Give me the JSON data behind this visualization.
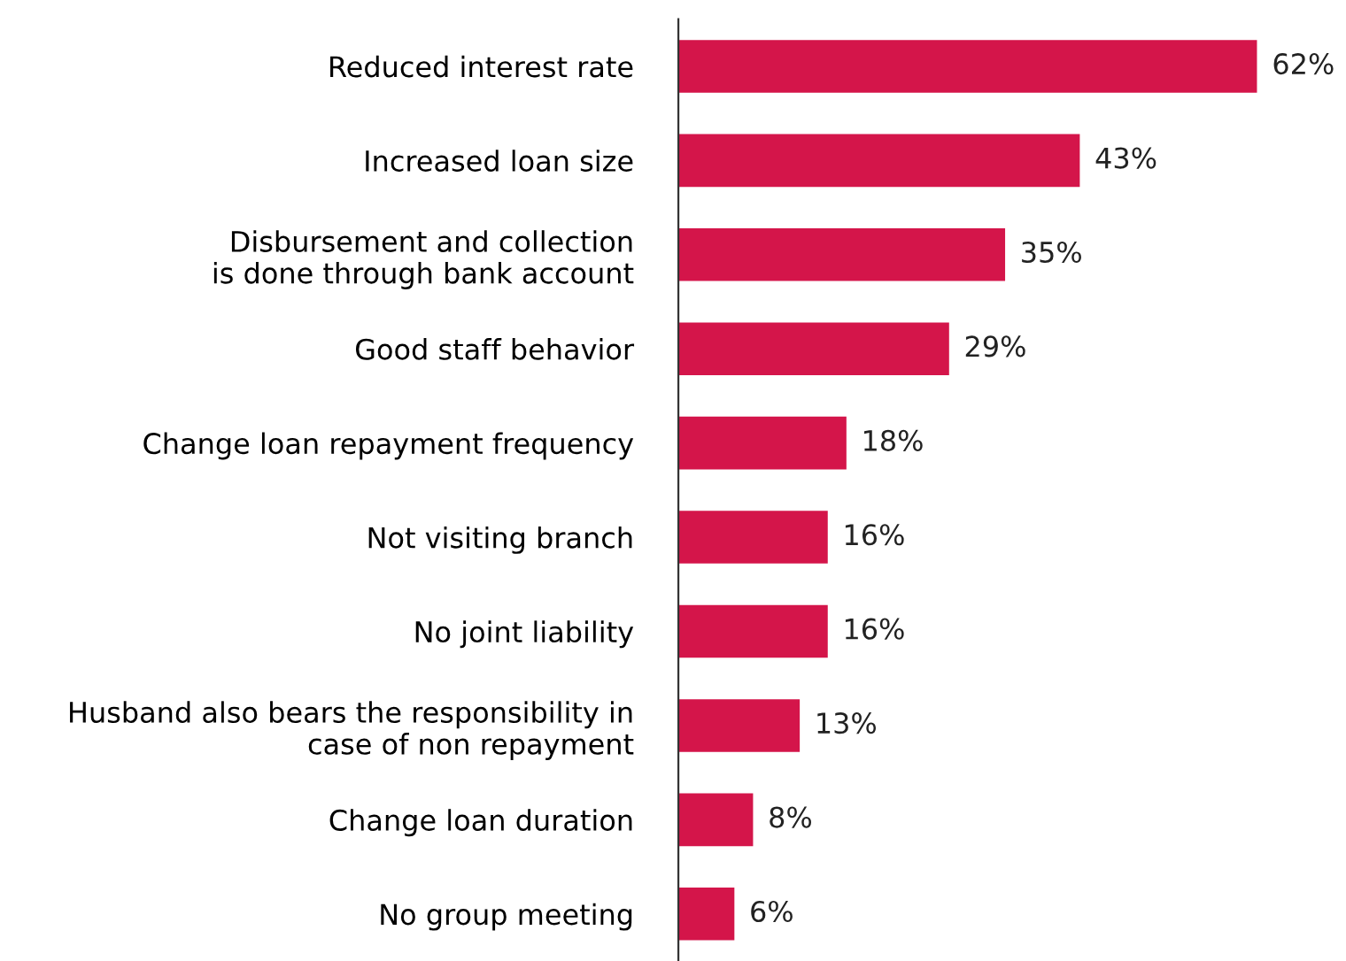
{
  "chart_data": {
    "type": "bar",
    "orientation": "horizontal",
    "categories": [
      "Reduced interest rate",
      "Increased loan size",
      "Disbursement and collection\nis done through bank account",
      "Good staff behavior",
      "Change loan repayment frequency",
      "Not visiting branch",
      "No joint liability",
      "Husband also bears the responsibility in\ncase of non repayment",
      "Change loan duration",
      "No group meeting"
    ],
    "values": [
      62,
      43,
      35,
      29,
      18,
      16,
      16,
      13,
      8,
      6
    ],
    "value_labels": [
      "62%",
      "43%",
      "35%",
      "29%",
      "18%",
      "16%",
      "16%",
      "13%",
      "8%",
      "6%"
    ],
    "color": "#d4154a",
    "grid": false,
    "legend": false
  }
}
